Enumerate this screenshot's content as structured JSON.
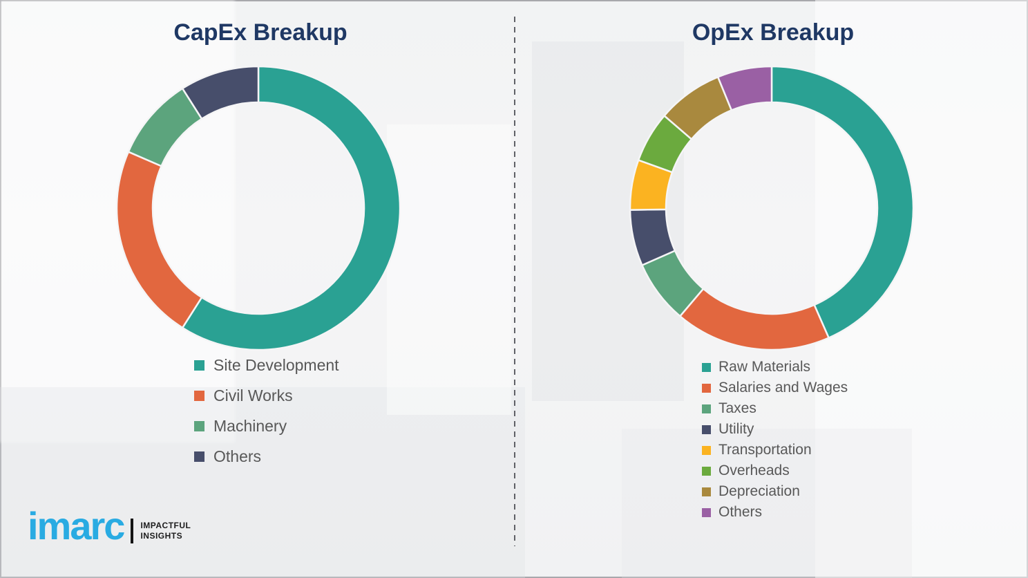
{
  "page": {
    "background_color": "#f3f3f4",
    "border_color": "#a8a8ac",
    "divider_style": "vertical-dashed",
    "divider_color": "#5f6066",
    "title_color": "#1F3864"
  },
  "chart_data": [
    {
      "type": "pie",
      "variant": "donut",
      "title": "CapEx Breakup",
      "legend_position": "below-left",
      "categories": [
        "Site Development",
        "Civil Works",
        "Machinery",
        "Others"
      ],
      "values": [
        59,
        22.5,
        9.5,
        9
      ],
      "colors": [
        "#2AA193",
        "#E2673F",
        "#5CA47D",
        "#474E6B"
      ],
      "start_angle_deg": 0,
      "direction": "clockwise",
      "inner_radius_ratio": 0.745
    },
    {
      "type": "pie",
      "variant": "donut",
      "title": "OpEx Breakup",
      "legend_position": "below-left",
      "categories": [
        "Raw Materials",
        "Salaries and Wages",
        "Taxes",
        "Utility",
        "Transportation",
        "Overheads",
        "Depreciation",
        "Others"
      ],
      "values": [
        43.4,
        17.8,
        7.2,
        6.4,
        5.7,
        5.8,
        7.5,
        6.2
      ],
      "colors": [
        "#2AA193",
        "#E2673F",
        "#5CA47D",
        "#474E6B",
        "#FBB321",
        "#6BAA3E",
        "#A9893E",
        "#9A60A4"
      ],
      "start_angle_deg": 0,
      "direction": "clockwise",
      "inner_radius_ratio": 0.745
    }
  ],
  "logo": {
    "brand": "imarc",
    "brand_color": "#29ABE2",
    "tagline_line1": "IMPACTFUL",
    "tagline_line2": "INSIGHTS"
  }
}
